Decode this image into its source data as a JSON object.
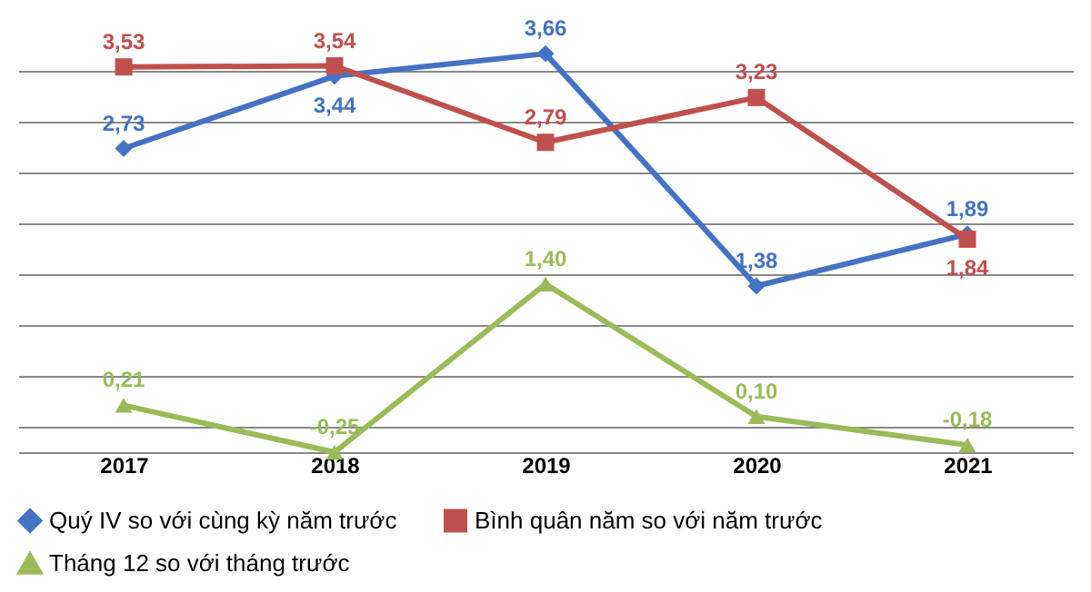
{
  "chart_data": {
    "type": "line",
    "categories": [
      "2017",
      "2018",
      "2019",
      "2020",
      "2021"
    ],
    "series": [
      {
        "name": "Quý IV so với cùng kỳ năm trước",
        "color": "#4472c4",
        "marker": "diamond",
        "values": [
          2.73,
          3.44,
          3.66,
          1.38,
          1.89
        ],
        "value_labels": [
          "2,73",
          "3,44",
          "3,66",
          "1,38",
          "1,89"
        ]
      },
      {
        "name": "Bình quân năm so với năm trước",
        "color": "#c0504d",
        "marker": "square",
        "values": [
          3.53,
          3.54,
          2.79,
          3.23,
          1.84
        ],
        "value_labels": [
          "3,53",
          "3,54",
          "2,79",
          "3,23",
          "1,84"
        ]
      },
      {
        "name": "Tháng 12 so với tháng trước",
        "color": "#9bbb59",
        "marker": "triangle",
        "values": [
          0.21,
          -0.25,
          1.4,
          0.1,
          -0.18
        ],
        "value_labels": [
          "0,21",
          "-0,25",
          "1,40",
          "0,10",
          "-0,18"
        ]
      }
    ],
    "tick_labels": "x",
    "grid": "y",
    "legend": "bottom",
    "line_style": "solid"
  }
}
